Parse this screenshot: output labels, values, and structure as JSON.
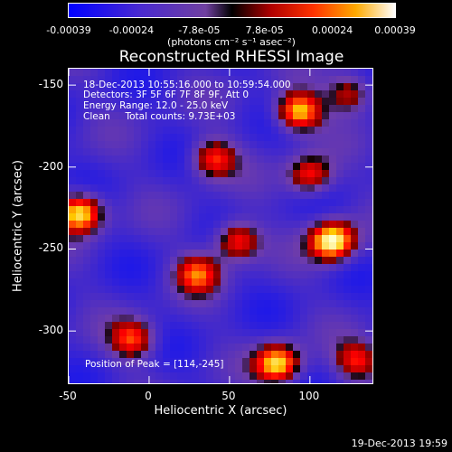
{
  "chart_data": {
    "type": "heatmap",
    "title": "Reconstructed RHESSI Image",
    "xlabel": "Heliocentric X (arcsec)",
    "ylabel": "Heliocentric Y (arcsec)",
    "xlim": [
      -50,
      140
    ],
    "ylim": [
      -333,
      -140
    ],
    "x_ticks": [
      "-50",
      "0",
      "50",
      "100"
    ],
    "x_tick_values": [
      -50,
      0,
      50,
      100
    ],
    "y_ticks": [
      "-150",
      "-200",
      "-250",
      "-300"
    ],
    "y_tick_values": [
      -150,
      -200,
      -250,
      -300
    ],
    "colorbar": {
      "ticks": [
        "-0.00039",
        "-0.00024",
        "-7.8e-05",
        "7.8e-05",
        "0.00024",
        "0.00039"
      ],
      "tick_values": [
        -0.00039,
        -0.00024,
        -7.8e-05,
        7.8e-05,
        0.00024,
        0.00039
      ],
      "range": [
        -0.00039,
        0.00039
      ],
      "units": "(photons cm⁻² s⁻¹ asec⁻²)"
    },
    "annotations": {
      "time_range": "18-Dec-2013 10:55:16.000 to 10:59:54.000",
      "detectors": "Detectors: 3F 5F 6F 7F 8F 9F, Att 0",
      "energy": "Energy Range: 12.0 - 25.0 keV",
      "method": "Clean     Total counts: 9.73E+03",
      "peak": "Position of Peak = [114,-245]"
    },
    "peak_position": [
      114,
      -245
    ],
    "bright_sources": [
      {
        "x": 93,
        "y": -166,
        "level": 0.85
      },
      {
        "x": 114,
        "y": -245,
        "level": 1.0
      },
      {
        "x": -43,
        "y": -228,
        "level": 0.9
      },
      {
        "x": 40,
        "y": -195,
        "level": 0.6
      },
      {
        "x": 55,
        "y": -245,
        "level": 0.65
      },
      {
        "x": 30,
        "y": -265,
        "level": 0.6
      },
      {
        "x": 125,
        "y": -155,
        "level": 0.5
      },
      {
        "x": -10,
        "y": -305,
        "level": 0.6
      },
      {
        "x": 80,
        "y": -320,
        "level": 0.85
      },
      {
        "x": 130,
        "y": -318,
        "level": 0.55
      },
      {
        "x": 100,
        "y": -205,
        "level": 0.6
      }
    ],
    "colors": {
      "low": "#0000ff",
      "mid": "#6633aa",
      "zero": "#000000",
      "hot": "#ff2200",
      "high": "#ffffff"
    }
  },
  "footer": {
    "timestamp": "19-Dec-2013 19:59"
  }
}
